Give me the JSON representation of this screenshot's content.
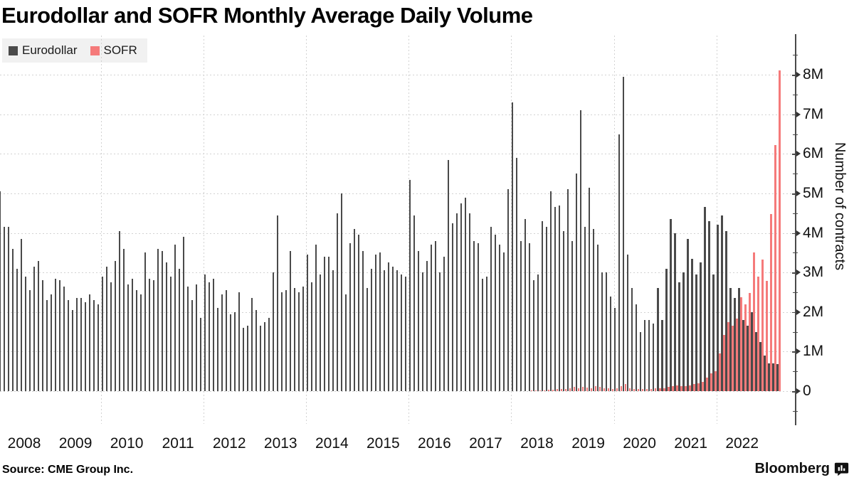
{
  "title": "Eurodollar and SOFR Monthly Average Daily Volume",
  "source": "Source: CME Group Inc.",
  "branding": {
    "name": "Bloomberg",
    "logo_icon": "bloomberg-terminal-icon"
  },
  "legend": [
    {
      "label": "Eurodollar",
      "color": "#4a4a4a"
    },
    {
      "label": "SOFR",
      "color": "#f57a7a"
    }
  ],
  "y_axis": {
    "title": "Number of contracts",
    "ticks": [
      "0",
      "1M",
      "2M",
      "3M",
      "4M",
      "5M",
      "6M",
      "7M",
      "8M"
    ],
    "minor_tick_step": "0.5M",
    "side": "right"
  },
  "x_axis": {
    "year_labels": [
      2008,
      2009,
      2010,
      2011,
      2012,
      2013,
      2014,
      2015,
      2016,
      2017,
      2018,
      2019,
      2020,
      2021,
      2022
    ],
    "gridline_years": [
      2010,
      2012,
      2014,
      2016,
      2018,
      2020,
      2022
    ]
  },
  "chart_data": {
    "type": "bar",
    "title": "Eurodollar and SOFR Monthly Average Daily Volume",
    "xlabel": "",
    "ylabel": "Number of contracts",
    "unit": "millions of contracts (monthly average daily volume)",
    "x_start": "2008-01",
    "x_end": "2023-03",
    "months_count": 183,
    "ylim": [
      0,
      8.5
    ],
    "grid": "dotted",
    "legend_position": "top-left",
    "series": [
      {
        "name": "Eurodollar",
        "color": "#4a4a4a",
        "values": [
          5.05,
          4.15,
          4.15,
          3.6,
          3.1,
          3.85,
          2.9,
          2.55,
          3.15,
          3.3,
          2.8,
          2.3,
          2.45,
          2.85,
          2.8,
          2.65,
          2.3,
          2.05,
          2.35,
          2.35,
          2.25,
          2.45,
          2.3,
          2.2,
          2.9,
          3.15,
          2.75,
          3.3,
          4.05,
          3.6,
          2.7,
          2.85,
          2.55,
          2.45,
          3.5,
          2.85,
          2.8,
          3.6,
          3.55,
          3.25,
          2.9,
          3.7,
          3.1,
          3.9,
          2.65,
          2.3,
          2.7,
          1.85,
          2.95,
          2.75,
          2.85,
          2.1,
          2.45,
          2.55,
          1.95,
          2.0,
          2.5,
          1.6,
          1.65,
          2.35,
          2.05,
          1.65,
          1.75,
          1.85,
          3.0,
          4.45,
          2.5,
          2.55,
          3.55,
          2.6,
          2.5,
          2.65,
          3.45,
          2.75,
          3.7,
          2.95,
          3.4,
          3.4,
          3.05,
          4.5,
          5.0,
          2.45,
          3.75,
          4.1,
          3.95,
          3.55,
          2.6,
          3.1,
          3.45,
          3.5,
          3.05,
          3.25,
          3.15,
          3.05,
          2.95,
          2.9,
          5.35,
          4.45,
          3.55,
          3.0,
          3.3,
          3.7,
          3.8,
          3.0,
          3.4,
          5.85,
          4.25,
          4.5,
          4.75,
          4.9,
          4.5,
          3.8,
          3.75,
          2.85,
          2.9,
          4.15,
          3.95,
          3.7,
          3.5,
          5.1,
          7.3,
          5.9,
          3.8,
          4.35,
          3.75,
          2.8,
          2.95,
          4.3,
          4.15,
          5.05,
          4.65,
          4.7,
          4.05,
          5.1,
          3.8,
          5.5,
          7.1,
          4.15,
          5.15,
          4.1,
          3.7,
          3.0,
          3.0,
          2.4,
          2.1,
          6.5,
          7.95,
          3.45,
          2.6,
          2.2,
          1.5,
          1.8,
          1.8,
          1.7,
          2.6,
          1.8,
          3.1,
          4.35,
          4.0,
          2.75,
          3.0,
          3.85,
          3.35,
          2.95,
          3.25,
          4.65,
          4.3,
          2.95,
          4.2,
          4.45,
          4.05,
          2.6,
          2.35,
          2.6,
          1.8,
          1.65,
          2.0,
          1.5,
          1.25,
          0.9,
          0.7,
          0.7,
          0.68
        ]
      },
      {
        "name": "SOFR",
        "color": "#f57a7a",
        "start_month_index": 124,
        "start_label": "2018-05",
        "values": [
          0.01,
          0.02,
          0.02,
          0.02,
          0.03,
          0.04,
          0.05,
          0.05,
          0.06,
          0.08,
          0.1,
          0.08,
          0.1,
          0.09,
          0.08,
          0.12,
          0.1,
          0.08,
          0.07,
          0.06,
          0.07,
          0.12,
          0.18,
          0.08,
          0.06,
          0.06,
          0.05,
          0.06,
          0.06,
          0.07,
          0.08,
          0.08,
          0.1,
          0.12,
          0.15,
          0.12,
          0.12,
          0.15,
          0.18,
          0.2,
          0.24,
          0.35,
          0.45,
          0.5,
          0.95,
          1.42,
          1.75,
          1.66,
          1.84,
          2.37,
          2.19,
          2.49,
          3.5,
          2.9,
          3.32,
          2.78,
          4.47,
          6.22,
          8.12
        ]
      }
    ]
  }
}
